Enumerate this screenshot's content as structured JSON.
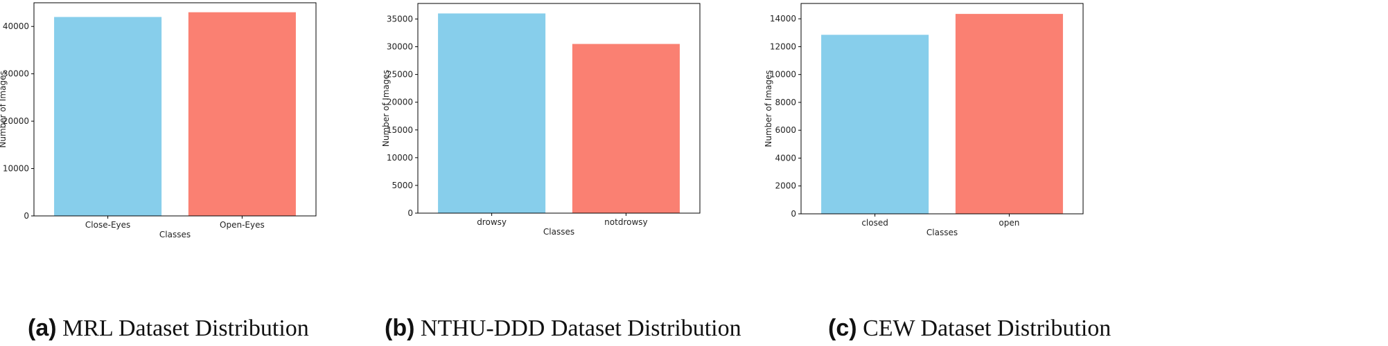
{
  "colors": {
    "bar1": "#87ceeb",
    "bar2": "#fa8072",
    "axis": "#000000"
  },
  "charts": [
    {
      "caption_tag": "(a)",
      "caption_text": "MRL Dataset Distribution",
      "chart_data": {
        "type": "bar",
        "categories": [
          "Close-Eyes",
          "Open-Eyes"
        ],
        "values": [
          42000,
          43000
        ],
        "xlabel": "Classes",
        "ylabel": "Number of Images",
        "ylim": [
          0,
          45000
        ],
        "yticks": [
          0,
          10000,
          20000,
          30000,
          40000
        ],
        "grid": false
      }
    },
    {
      "caption_tag": "(b)",
      "caption_text": "NTHU-DDD Dataset Distribution",
      "chart_data": {
        "type": "bar",
        "categories": [
          "drowsy",
          "notdrowsy"
        ],
        "values": [
          36000,
          30500
        ],
        "xlabel": "Classes",
        "ylabel": "Number of Images",
        "ylim": [
          0,
          37800
        ],
        "yticks": [
          0,
          5000,
          10000,
          15000,
          20000,
          25000,
          30000,
          35000
        ],
        "grid": false
      }
    },
    {
      "caption_tag": "(c)",
      "caption_text": "CEW Dataset Distribution",
      "chart_data": {
        "type": "bar",
        "categories": [
          "closed",
          "open"
        ],
        "values": [
          12850,
          14350
        ],
        "xlabel": "Classes",
        "ylabel": "Number of Images",
        "ylim": [
          0,
          15100
        ],
        "yticks": [
          0,
          2000,
          4000,
          6000,
          8000,
          10000,
          12000,
          14000
        ],
        "grid": false
      }
    }
  ]
}
